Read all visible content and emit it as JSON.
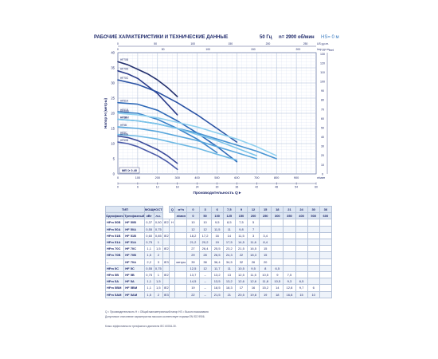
{
  "header": {
    "title": "РАБОЧИЕ ХАРАКТЕРИСТИКИ И ТЕХНИЧЕСКИЕ ДАННЫЕ",
    "freq": "50 Гц",
    "rpm": "n= 2900 об/мин",
    "hs": "HS= 0 м"
  },
  "chart_data": {
    "type": "line",
    "xlabel": "Производительность Q",
    "ylabel": "Напор H (метры)",
    "x_unit_top_right": "US g.p.m.",
    "x_unit_top_left": "Imp g.p.m.",
    "x_unit_bottom_right": "л/мин",
    "y_unit_right": "feet",
    "mei_label": "MEI ≥ 0.40",
    "xlim": [
      0,
      1000
    ],
    "ylim": [
      0,
      40
    ],
    "bottom_ticks": [
      0,
      100,
      200,
      300,
      400,
      500,
      600,
      700,
      800,
      900,
      "л/мин"
    ],
    "top_ticks_usgpm": [
      0,
      50,
      100,
      150,
      200,
      250
    ],
    "top_ticks_impgpm": [
      0,
      50,
      100,
      150,
      200
    ],
    "m3h_ticks": [
      0,
      6,
      12,
      18,
      24,
      30,
      36,
      42,
      48,
      54,
      60
    ],
    "left_ticks": [
      0,
      5,
      10,
      15,
      20,
      25,
      30,
      35,
      40
    ],
    "right_ticks": [
      0,
      10,
      20,
      30,
      40,
      50,
      60,
      70,
      80,
      90,
      100,
      110,
      120,
      130
    ],
    "series": [
      {
        "name": "HF70B",
        "color": "#23306e",
        "x": [
          0,
          50,
          100,
          150,
          200,
          250,
          300
        ],
        "y": [
          37,
          36,
          34.5,
          33,
          31,
          28.5,
          25.5
        ]
      },
      {
        "name": "HF70A",
        "color": "#2a3b8a",
        "x": [
          0,
          50,
          100,
          150,
          200,
          250,
          300
        ],
        "y": [
          34,
          33,
          31.5,
          29,
          26.5,
          23,
          19.5
        ]
      },
      {
        "name": "HF70C",
        "color": "#2a52a4",
        "x": [
          0,
          100,
          200,
          300,
          400,
          500,
          600
        ],
        "y": [
          31,
          29.5,
          27,
          23.5,
          19.5,
          15,
          10.5
        ]
      },
      {
        "name": "HF51A",
        "color": "#2f6ab8",
        "x": [
          0,
          100,
          200,
          300,
          400,
          500,
          600
        ],
        "y": [
          23.5,
          23,
          21,
          17.5,
          13.5,
          9,
          4
        ]
      },
      {
        "name": "HF51B",
        "color": "#3a82c8",
        "x": [
          0,
          100,
          200,
          300,
          400,
          500
        ],
        "y": [
          20.5,
          20,
          18,
          15,
          11.5,
          7
        ]
      },
      {
        "name": "HF5A",
        "color": "#4794d2",
        "x": [
          0,
          100,
          200,
          300,
          400,
          500,
          600,
          700,
          800
        ],
        "y": [
          18,
          17.5,
          16.5,
          15,
          13.5,
          11.5,
          9.5,
          7.5,
          5
        ]
      },
      {
        "name": "HF5B",
        "color": "#58a6dc",
        "x": [
          0,
          100,
          200,
          300,
          400,
          500,
          600,
          700
        ],
        "y": [
          15.5,
          15,
          14,
          12.5,
          11,
          9,
          7,
          5
        ]
      },
      {
        "name": "HF5C",
        "color": "#6cb8e4",
        "x": [
          0,
          100,
          200,
          300,
          400,
          500,
          600
        ],
        "y": [
          13,
          12.5,
          11.5,
          10,
          8.5,
          6.5,
          4.5
        ]
      },
      {
        "name": "HF50A",
        "color": "#3a4a9a",
        "x": [
          0,
          50,
          100,
          150,
          200,
          250,
          300
        ],
        "y": [
          12.5,
          12,
          11,
          9.5,
          8,
          6,
          3.5
        ]
      },
      {
        "name": "HF50B",
        "color": "#4a5aa8",
        "x": [
          0,
          50,
          100,
          150,
          200,
          250,
          300
        ],
        "y": [
          10.5,
          10,
          9,
          7.5,
          6,
          4,
          1.5
        ]
      },
      {
        "name": "HF5BM",
        "color": "#7bc4ea",
        "x": [
          0,
          100,
          200,
          300,
          400,
          500,
          600,
          700
        ],
        "y": [
          18,
          17.5,
          16.5,
          15,
          13,
          11,
          8.5,
          6
        ]
      },
      {
        "name": "HF5AM",
        "color": "#8fd0ef",
        "x": [
          0,
          100,
          200,
          300,
          400,
          500,
          600,
          700,
          800
        ],
        "y": [
          20,
          19.5,
          18.5,
          17,
          15.5,
          13.5,
          11.5,
          9,
          6
        ]
      }
    ]
  },
  "table": {
    "h_type": "ТИП",
    "h_single": "Однофазный",
    "h_three": "Трехфазный",
    "h_power": "МОЩНОСТЬ (P2)",
    "h_kw": "кВт",
    "h_hp": "л.с.",
    "h_q": "Q",
    "h_m3h": "м³/ч",
    "h_lmin": "л/мин",
    "h_h": "H",
    "h_metr": "метры",
    "m3h": [
      "0",
      "3",
      "6",
      "7,5",
      "9",
      "12",
      "15",
      "18",
      "21",
      "24",
      "30",
      "36"
    ],
    "lmin": [
      "0",
      "50",
      "100",
      "125",
      "150",
      "200",
      "250",
      "300",
      "350",
      "400",
      "500",
      "600"
    ],
    "rows": [
      {
        "m": "HFm 50B",
        "t": "HF 50B",
        "kw": "0,37",
        "hp": "0,50",
        "ie": "IE2",
        "h": [
          "10",
          "10",
          "9,5",
          "8,5",
          "7,5",
          "5",
          "",
          "",
          "",
          "",
          "",
          ""
        ]
      },
      {
        "m": "HFm 50A",
        "t": "HF 50A",
        "kw": "0,55",
        "hp": "0,75",
        "ie": "",
        "h": [
          "12",
          "12",
          "11,5",
          "11",
          "9,8",
          "7",
          "",
          "",
          "",
          "",
          "",
          ""
        ]
      },
      {
        "m": "HFm 51B",
        "t": "HF 51B",
        "kw": "0,60",
        "hp": "0,85",
        "ie": "IE2",
        "h": [
          "18,2",
          "17,2",
          "16",
          "14",
          "11,5",
          "3",
          "3,4",
          "",
          "",
          "",
          "",
          ""
        ]
      },
      {
        "m": "HFm 51A",
        "t": "HF 51A",
        "kw": "0,75",
        "hp": "1",
        "ie": "",
        "h": [
          "21,2",
          "20,2",
          "19",
          "17,5",
          "14,5",
          "11,6",
          "8,4",
          "",
          "",
          "",
          "",
          ""
        ]
      },
      {
        "m": "HFm 70C",
        "t": "HF 70C",
        "kw": "1,1",
        "hp": "1,5",
        "ie": "IE2",
        "h": [
          "27",
          "26,4",
          "25,5",
          "23,2",
          "21,5",
          "16,5",
          "15",
          "",
          "",
          "",
          "",
          ""
        ]
      },
      {
        "m": "HFm 70B",
        "t": "HF 70B",
        "kw": "1,5",
        "hp": "2",
        "ie": "",
        "h": [
          "29",
          "28",
          "26,5",
          "24,3",
          "22",
          "18,3",
          "15",
          "",
          "",
          "",
          "",
          ""
        ]
      },
      {
        "m": "–",
        "t": "HF 70A",
        "kw": "2,2",
        "hp": "3",
        "ie": "IE3",
        "h": [
          "39",
          "38",
          "36,4",
          "34,5",
          "32",
          "26",
          "20",
          "",
          "",
          "",
          "",
          ""
        ]
      },
      {
        "m": "HFm 5C",
        "t": "HF 5C",
        "kw": "0,55",
        "hp": "0,75",
        "ie": "",
        "h": [
          "12,5",
          "12",
          "11,7",
          "11",
          "10,5",
          "9,5",
          "8",
          "6,5",
          "",
          "",
          "",
          ""
        ]
      },
      {
        "m": "HFm 5B",
        "t": "HF 5B",
        "kw": "0,75",
        "hp": "1",
        "ie": "IE2",
        "h": [
          "13,7",
          "–",
          "13,2",
          "13",
          "12,5",
          "11,5",
          "10,5",
          "9",
          "7,5",
          "",
          "",
          ""
        ]
      },
      {
        "m": "HFm 5A",
        "t": "HF 5A",
        "kw": "1,1",
        "hp": "1,5",
        "ie": "",
        "h": [
          "14,5",
          "–",
          "13,5",
          "13,2",
          "12,6",
          "12,6",
          "11,8",
          "10,5",
          "9,3",
          "6,5",
          "",
          ""
        ]
      },
      {
        "m": "HFm 5BM",
        "t": "HF 5BM",
        "kw": "1,1",
        "hp": "1,5",
        "ie": "IE2",
        "h": [
          "19",
          "–",
          "18,5",
          "18,3",
          "17",
          "16",
          "15,2",
          "14",
          "12,8",
          "9,7",
          "6",
          ""
        ]
      },
      {
        "m": "HFm 5AM",
        "t": "HF 5AM",
        "kw": "1,5",
        "hp": "2",
        "ie": "IE3",
        "h": [
          "22",
          "–",
          "21,5",
          "21",
          "20,5",
          "19,8",
          "19",
          "18",
          "16,8",
          "15",
          "10",
          ""
        ]
      }
    ]
  },
  "footnotes": [
    "Q = Производительность  H = Общий манометрический напор  HS = Высота всасывания",
    "Допустимое отклонение характеристик насосов соответствует нормам EN ISO 9906.",
    "Класс эффективности трехфазного двигателя IEC 60034-30."
  ]
}
